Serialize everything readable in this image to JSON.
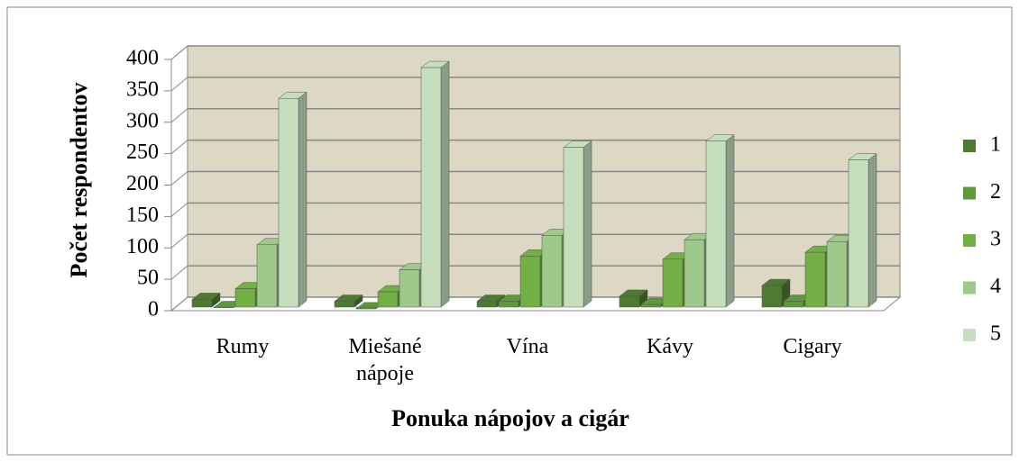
{
  "chart_data": {
    "type": "bar3d",
    "x_label": "Ponuka nápojov a cigár",
    "y_label": "Počet respondentov",
    "categories": [
      "Rumy",
      "Miešané nápoje",
      "Vína",
      "Kávy",
      "Cigary"
    ],
    "series": [
      {
        "name": "1",
        "color": "#4f7a32",
        "values": [
          18,
          15,
          15,
          23,
          40
        ]
      },
      {
        "name": "2",
        "color": "#5e9a3a",
        "values": [
          5,
          3,
          15,
          10,
          15
        ]
      },
      {
        "name": "3",
        "color": "#72b045",
        "values": [
          35,
          30,
          87,
          82,
          93
        ]
      },
      {
        "name": "4",
        "color": "#9fc88b",
        "values": [
          105,
          65,
          120,
          113,
          110
        ]
      },
      {
        "name": "5",
        "color": "#c5dfbe",
        "values": [
          338,
          387,
          260,
          270,
          240
        ]
      }
    ],
    "ylim": [
      0,
      400
    ],
    "yticks": [
      0,
      50,
      100,
      150,
      200,
      250,
      300,
      350,
      400
    ],
    "grid": true,
    "legend": "right"
  }
}
